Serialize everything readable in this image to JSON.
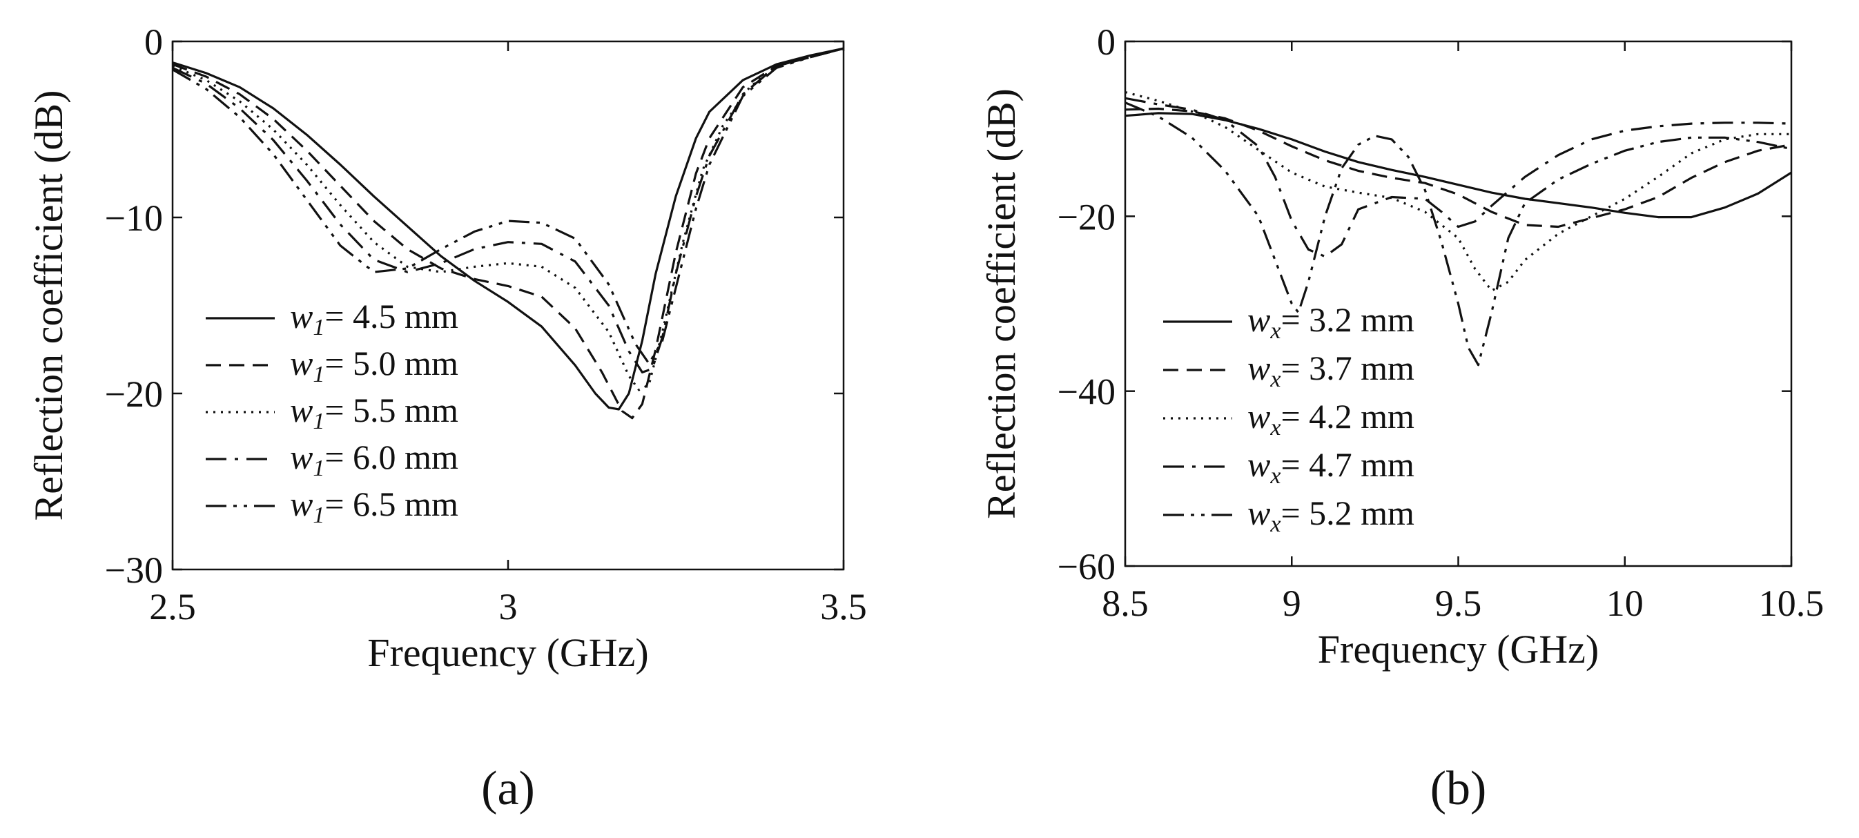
{
  "chart_data": [
    {
      "id": "a",
      "type": "line",
      "panel_label": "(a)",
      "title": "",
      "xlabel": "Frequency (GHz)",
      "ylabel": "Reflection coefficient (dB)",
      "xlim": [
        2.5,
        3.5
      ],
      "ylim": [
        -30,
        0
      ],
      "xticks": [
        2.5,
        3,
        3.5
      ],
      "xtick_labels": [
        "2.5",
        "3",
        "3.5"
      ],
      "yticks": [
        0,
        -10,
        -20,
        -30
      ],
      "ytick_labels": [
        "0",
        "−10",
        "−20",
        "−30"
      ],
      "grid": false,
      "legend_position": "bottom-left",
      "series": [
        {
          "name": "w1 = 4.5 mm",
          "symbol": "w",
          "subscript": "1",
          "value_text": "= 4.5 mm",
          "style": "solid",
          "x": [
            2.5,
            2.55,
            2.6,
            2.65,
            2.7,
            2.75,
            2.8,
            2.85,
            2.9,
            2.95,
            3.0,
            3.05,
            3.1,
            3.13,
            3.15,
            3.165,
            3.18,
            3.2,
            3.22,
            3.25,
            3.28,
            3.3,
            3.35,
            3.4,
            3.45,
            3.5
          ],
          "values": [
            -1.2,
            -1.8,
            -2.6,
            -3.8,
            -5.3,
            -7.0,
            -8.8,
            -10.5,
            -12.2,
            -13.6,
            -14.8,
            -16.2,
            -18.4,
            -20.0,
            -20.8,
            -20.9,
            -20.0,
            -17.0,
            -13.2,
            -8.8,
            -5.5,
            -4.0,
            -2.2,
            -1.3,
            -0.8,
            -0.4
          ]
        },
        {
          "name": "w1 = 5.0 mm",
          "symbol": "w",
          "subscript": "1",
          "value_text": "= 5.0 mm",
          "style": "dashed",
          "x": [
            2.5,
            2.55,
            2.6,
            2.65,
            2.7,
            2.75,
            2.8,
            2.85,
            2.9,
            2.95,
            3.0,
            3.05,
            3.1,
            3.14,
            3.17,
            3.185,
            3.2,
            3.22,
            3.25,
            3.28,
            3.3,
            3.35,
            3.4,
            3.45,
            3.5
          ],
          "values": [
            -1.3,
            -2.0,
            -3.0,
            -4.4,
            -6.2,
            -8.2,
            -10.2,
            -11.8,
            -12.9,
            -13.5,
            -13.9,
            -14.5,
            -16.3,
            -18.8,
            -21.0,
            -21.4,
            -20.6,
            -17.5,
            -12.0,
            -7.5,
            -5.5,
            -2.6,
            -1.4,
            -0.9,
            -0.4
          ]
        },
        {
          "name": "w1 = 5.5 mm",
          "symbol": "w",
          "subscript": "1",
          "value_text": "= 5.5 mm",
          "style": "dotted",
          "x": [
            2.5,
            2.55,
            2.6,
            2.65,
            2.7,
            2.75,
            2.8,
            2.85,
            2.9,
            2.95,
            3.0,
            3.05,
            3.1,
            3.15,
            3.18,
            3.195,
            3.21,
            3.23,
            3.26,
            3.29,
            3.32,
            3.36,
            3.4,
            3.45,
            3.5
          ],
          "values": [
            -1.4,
            -2.2,
            -3.4,
            -5.0,
            -7.0,
            -9.3,
            -11.4,
            -12.8,
            -13.1,
            -12.8,
            -12.6,
            -12.8,
            -14.0,
            -16.5,
            -19.0,
            -19.8,
            -19.5,
            -16.5,
            -11.5,
            -7.3,
            -4.8,
            -2.6,
            -1.4,
            -0.9,
            -0.4
          ]
        },
        {
          "name": "w1 = 6.0 mm",
          "symbol": "w",
          "subscript": "1",
          "value_text": "= 6.0 mm",
          "style": "dashdot",
          "x": [
            2.5,
            2.55,
            2.6,
            2.65,
            2.7,
            2.75,
            2.8,
            2.85,
            2.9,
            2.95,
            3.0,
            3.05,
            3.1,
            3.15,
            3.18,
            3.2,
            3.215,
            3.23,
            3.25,
            3.28,
            3.3,
            3.35,
            3.4,
            3.45,
            3.5
          ],
          "values": [
            -1.5,
            -2.4,
            -3.8,
            -5.6,
            -7.9,
            -10.4,
            -12.4,
            -13.1,
            -12.6,
            -11.8,
            -11.4,
            -11.5,
            -12.5,
            -15.0,
            -17.6,
            -18.8,
            -18.6,
            -16.8,
            -13.2,
            -8.8,
            -6.5,
            -3.0,
            -1.4,
            -0.9,
            -0.4
          ]
        },
        {
          "name": "w1 = 6.5 mm",
          "symbol": "w",
          "subscript": "1",
          "value_text": "= 6.5 mm",
          "style": "dashdotdot",
          "x": [
            2.5,
            2.55,
            2.6,
            2.65,
            2.7,
            2.75,
            2.8,
            2.85,
            2.9,
            2.95,
            3.0,
            3.05,
            3.1,
            3.15,
            3.19,
            3.21,
            3.23,
            3.25,
            3.28,
            3.3,
            3.35,
            3.4,
            3.45,
            3.5
          ],
          "values": [
            -1.6,
            -2.7,
            -4.3,
            -6.4,
            -9.0,
            -11.6,
            -13.1,
            -12.9,
            -11.8,
            -10.8,
            -10.2,
            -10.3,
            -11.2,
            -13.8,
            -17.2,
            -18.3,
            -17.0,
            -14.0,
            -9.5,
            -7.0,
            -3.1,
            -1.5,
            -0.9,
            -0.4
          ]
        }
      ]
    },
    {
      "id": "b",
      "type": "line",
      "panel_label": "(b)",
      "title": "",
      "xlabel": "Frequency (GHz)",
      "ylabel": "Reflection coefficient (dB)",
      "xlim": [
        8.5,
        10.5
      ],
      "ylim": [
        -60,
        0
      ],
      "xticks": [
        8.5,
        9,
        9.5,
        10,
        10.5
      ],
      "xtick_labels": [
        "8.5",
        "9",
        "9.5",
        "10",
        "10.5"
      ],
      "yticks": [
        0,
        -20,
        -40,
        -60
      ],
      "ytick_labels": [
        "0",
        "−20",
        "−40",
        "−60"
      ],
      "grid": false,
      "legend_position": "bottom-left",
      "series": [
        {
          "name": "wx = 3.2 mm",
          "symbol": "w",
          "subscript": "x",
          "value_text": "= 3.2 mm",
          "style": "solid",
          "x": [
            8.5,
            8.6,
            8.7,
            8.8,
            8.9,
            9.0,
            9.1,
            9.2,
            9.3,
            9.4,
            9.5,
            9.6,
            9.7,
            9.8,
            9.9,
            10.0,
            10.1,
            10.2,
            10.3,
            10.4,
            10.5
          ],
          "values": [
            -8.5,
            -8.2,
            -8.3,
            -9.0,
            -10.0,
            -11.2,
            -12.6,
            -13.8,
            -14.7,
            -15.5,
            -16.4,
            -17.3,
            -18.0,
            -18.5,
            -19.0,
            -19.6,
            -20.1,
            -20.1,
            -19.0,
            -17.4,
            -15.0
          ]
        },
        {
          "name": "wx = 3.7 mm",
          "symbol": "w",
          "subscript": "x",
          "value_text": "= 3.7 mm",
          "style": "dashed",
          "x": [
            8.5,
            8.6,
            8.7,
            8.8,
            8.9,
            9.0,
            9.1,
            9.2,
            9.3,
            9.4,
            9.5,
            9.6,
            9.7,
            9.8,
            9.9,
            10.0,
            10.1,
            10.2,
            10.3,
            10.4,
            10.5
          ],
          "values": [
            -7.8,
            -7.7,
            -8.0,
            -8.8,
            -10.2,
            -12.0,
            -13.6,
            -14.8,
            -15.6,
            -16.2,
            -17.5,
            -19.5,
            -21.0,
            -21.2,
            -20.2,
            -19.2,
            -17.8,
            -15.6,
            -13.8,
            -12.5,
            -11.8
          ]
        },
        {
          "name": "wx = 4.2 mm",
          "symbol": "w",
          "subscript": "x",
          "value_text": "= 4.2 mm",
          "style": "dotted",
          "x": [
            8.5,
            8.6,
            8.7,
            8.8,
            8.9,
            9.0,
            9.1,
            9.2,
            9.3,
            9.4,
            9.5,
            9.55,
            9.6,
            9.65,
            9.7,
            9.8,
            9.9,
            10.0,
            10.1,
            10.2,
            10.3,
            10.4,
            10.5
          ],
          "values": [
            -5.8,
            -6.8,
            -8.0,
            -9.8,
            -12.4,
            -15.0,
            -16.6,
            -17.3,
            -17.9,
            -19.5,
            -22.5,
            -26.0,
            -28.5,
            -27.5,
            -25.0,
            -22.0,
            -20.0,
            -18.0,
            -15.5,
            -12.8,
            -11.2,
            -10.6,
            -10.6
          ]
        },
        {
          "name": "wx = 4.7 mm",
          "symbol": "w",
          "subscript": "x",
          "value_text": "= 4.7 mm",
          "style": "dashdot",
          "x": [
            8.5,
            8.6,
            8.7,
            8.8,
            8.9,
            8.95,
            9.0,
            9.05,
            9.1,
            9.15,
            9.2,
            9.3,
            9.4,
            9.45,
            9.5,
            9.55,
            9.6,
            9.7,
            9.8,
            9.9,
            10.0,
            10.1,
            10.2,
            10.3,
            10.4,
            10.5
          ],
          "values": [
            -6.5,
            -7.2,
            -7.8,
            -9.0,
            -12.0,
            -15.5,
            -20.5,
            -23.8,
            -24.6,
            -23.2,
            -19.2,
            -17.8,
            -18.0,
            -19.5,
            -21.2,
            -20.6,
            -18.8,
            -15.5,
            -13.0,
            -11.2,
            -10.2,
            -9.7,
            -9.4,
            -9.3,
            -9.3,
            -9.4
          ]
        },
        {
          "name": "wx = 5.2 mm",
          "symbol": "w",
          "subscript": "x",
          "value_text": "= 5.2 mm",
          "style": "dashdotdot",
          "x": [
            8.5,
            8.6,
            8.7,
            8.8,
            8.9,
            8.95,
            9.0,
            9.02,
            9.05,
            9.1,
            9.15,
            9.2,
            9.25,
            9.3,
            9.35,
            9.4,
            9.45,
            9.5,
            9.53,
            9.56,
            9.6,
            9.65,
            9.7,
            9.8,
            9.9,
            10.0,
            10.1,
            10.2,
            10.3,
            10.4,
            10.5
          ],
          "values": [
            -7.0,
            -8.6,
            -11.0,
            -14.8,
            -20.0,
            -25.0,
            -30.0,
            -31.0,
            -27.5,
            -20.0,
            -14.5,
            -11.8,
            -10.8,
            -11.2,
            -13.2,
            -17.0,
            -23.0,
            -30.0,
            -35.0,
            -37.0,
            -31.0,
            -22.5,
            -18.5,
            -15.8,
            -14.0,
            -12.5,
            -11.5,
            -11.0,
            -11.0,
            -11.5,
            -12.3
          ]
        }
      ]
    }
  ]
}
